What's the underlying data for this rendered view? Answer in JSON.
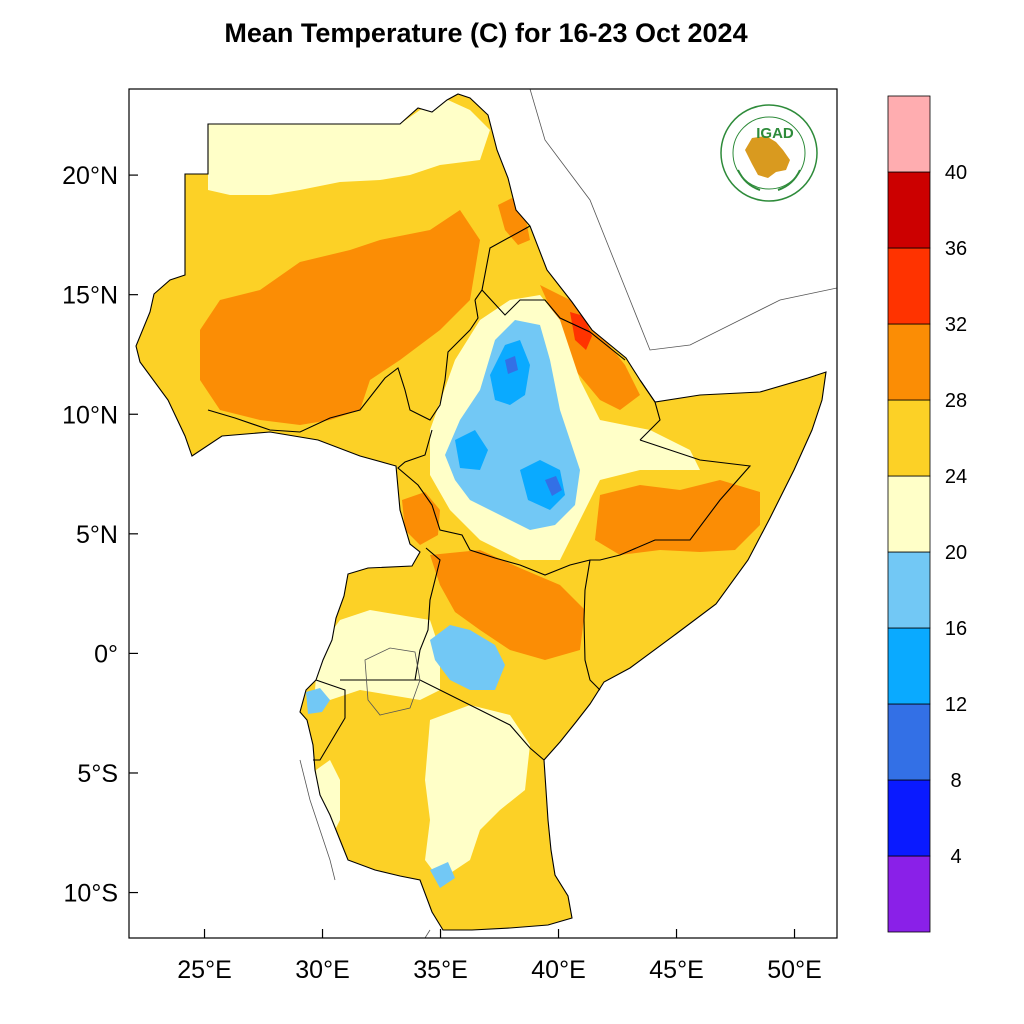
{
  "title": "Mean Temperature (C) for 16-23 Oct 2024",
  "logo": {
    "text": "IGAD",
    "arc_top": "INTERGOVERNMENTAL AUTHORITY ON DEVELOPMENT",
    "arc_bottom": "AUTORITE INTERGOUVERNEMENTALE POUR LE DEVELOPPEMENT"
  },
  "map": {
    "lon_range": [
      21.8,
      51.8
    ],
    "lat_range": [
      -11.9,
      23.6
    ],
    "lon_ticks": [
      {
        "value": 25,
        "label": "25°E"
      },
      {
        "value": 30,
        "label": "30°E"
      },
      {
        "value": 35,
        "label": "35°E"
      },
      {
        "value": 40,
        "label": "40°E"
      },
      {
        "value": 45,
        "label": "45°E"
      },
      {
        "value": 50,
        "label": "50°E"
      }
    ],
    "lat_ticks": [
      {
        "value": 20,
        "label": "20°N"
      },
      {
        "value": 15,
        "label": "15°N"
      },
      {
        "value": 10,
        "label": "10°N"
      },
      {
        "value": 5,
        "label": "5°N"
      },
      {
        "value": 0,
        "label": "0°"
      },
      {
        "value": -5,
        "label": "5°S"
      },
      {
        "value": -10,
        "label": "10°S"
      }
    ]
  },
  "colorbar": {
    "colors": [
      "#8a20e8",
      "#0a1aff",
      "#3370e6",
      "#0aaaff",
      "#72c8f5",
      "#ffffc8",
      "#fcd126",
      "#fb8d05",
      "#ff3300",
      "#cc0000",
      "#ffadb0"
    ],
    "labels": [
      "4",
      "8",
      "12",
      "16",
      "20",
      "24",
      "28",
      "32",
      "36",
      "40"
    ]
  }
}
